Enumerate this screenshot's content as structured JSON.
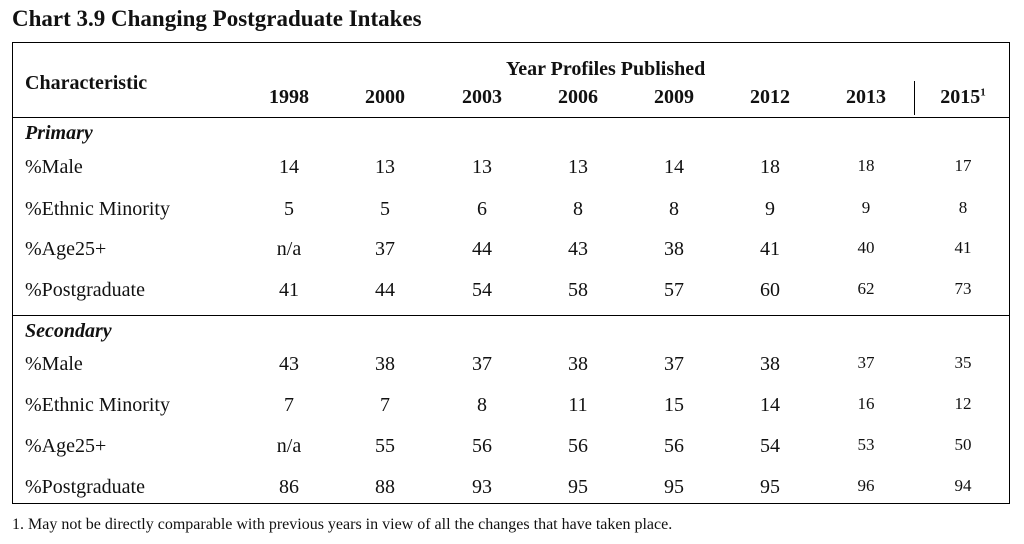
{
  "title": "Chart 3.9 Changing Postgraduate Intakes",
  "header": {
    "characteristic": "Characteristic",
    "group_heading": "Year Profiles Published",
    "years": [
      "1998",
      "2000",
      "2003",
      "2006",
      "2009",
      "2012",
      "2013",
      "2015"
    ],
    "last_year_footnote_mark": "1"
  },
  "sections": [
    {
      "name": "Primary",
      "rows": [
        {
          "label": "%Male",
          "values": [
            "14",
            "13",
            "13",
            "13",
            "14",
            "18",
            "18",
            "17"
          ]
        },
        {
          "label": "%Ethnic Minority",
          "values": [
            "5",
            "5",
            "6",
            "8",
            "8",
            "9",
            "9",
            "8"
          ]
        },
        {
          "label": "%Age25+",
          "values": [
            "n/a",
            "37",
            "44",
            "43",
            "38",
            "41",
            "40",
            "41"
          ]
        },
        {
          "label": "%Postgraduate",
          "values": [
            "41",
            "44",
            "54",
            "58",
            "57",
            "60",
            "62",
            "73"
          ]
        }
      ]
    },
    {
      "name": "Secondary",
      "rows": [
        {
          "label": "%Male",
          "values": [
            "43",
            "38",
            "37",
            "38",
            "37",
            "38",
            "37",
            "35"
          ]
        },
        {
          "label": "%Ethnic Minority",
          "values": [
            "7",
            "7",
            "8",
            "11",
            "15",
            "14",
            "16",
            "12"
          ]
        },
        {
          "label": "%Age25+",
          "values": [
            "n/a",
            "55",
            "56",
            "56",
            "56",
            "54",
            "53",
            "50"
          ]
        },
        {
          "label": "%Postgraduate",
          "values": [
            "86",
            "88",
            "93",
            "95",
            "95",
            "95",
            "96",
            "94"
          ]
        }
      ]
    }
  ],
  "footnote": "1. May not be directly comparable with previous years in view of all the changes that have taken place."
}
